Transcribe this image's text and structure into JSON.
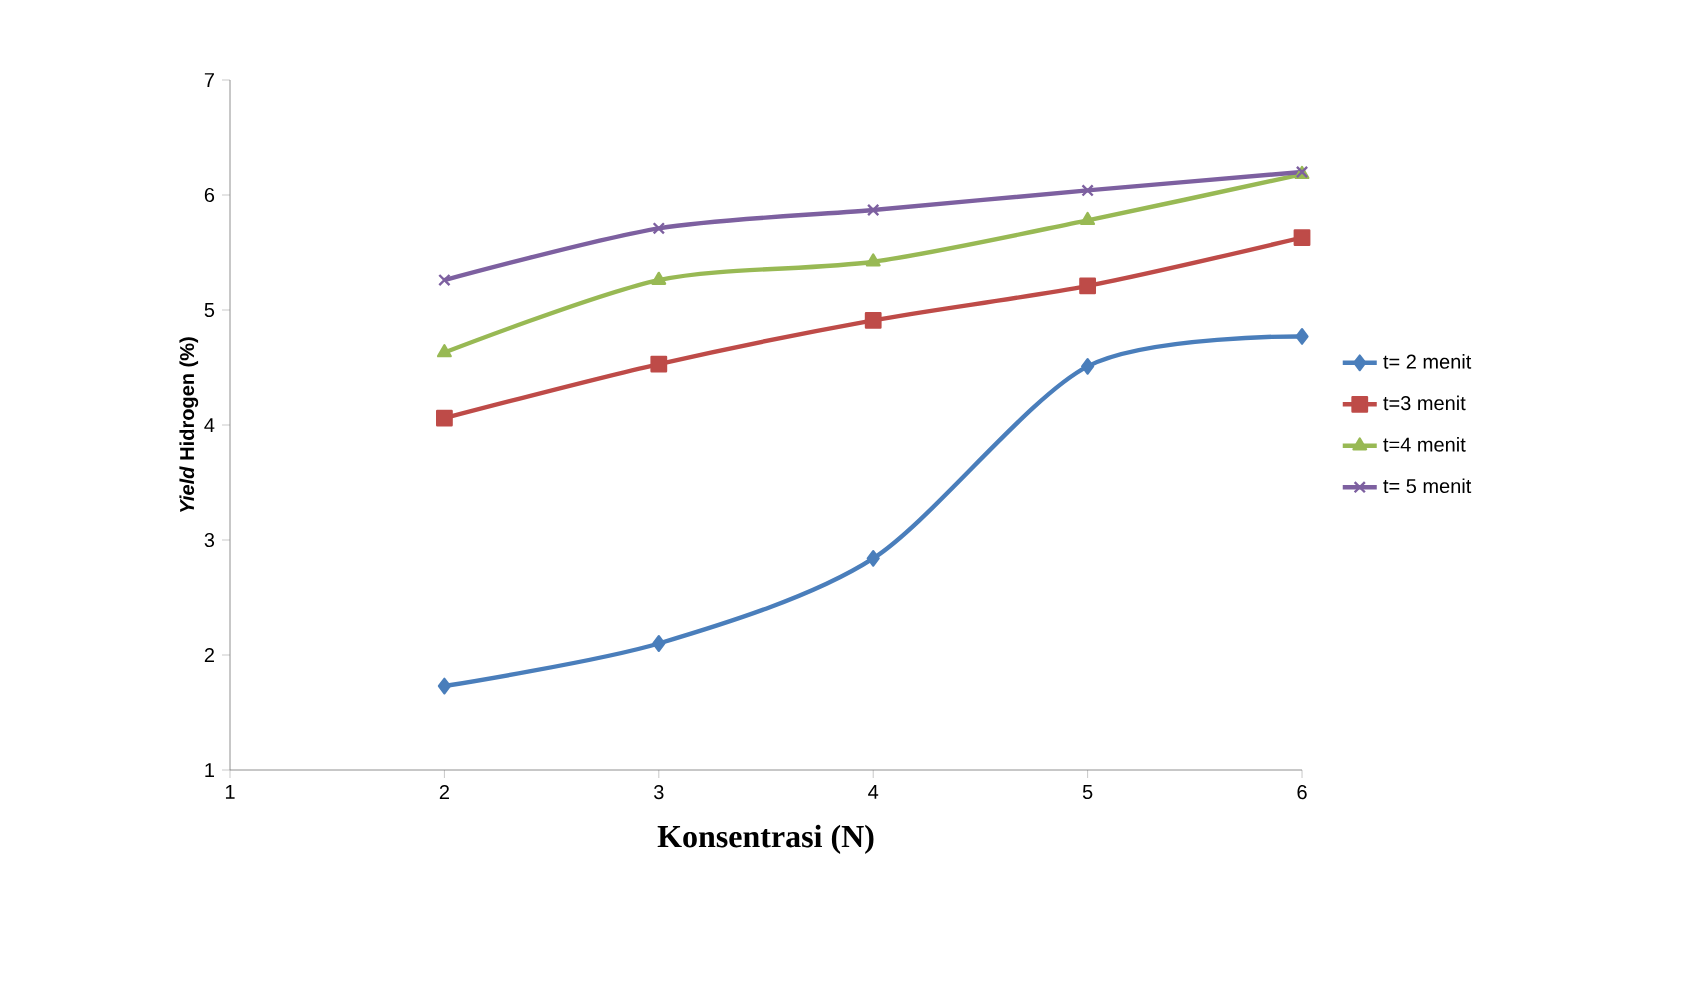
{
  "chart_data": {
    "type": "line",
    "xlabel": "Konsentrasi (N)",
    "ylabel": "*Yield* Hidrogen (%)",
    "x": [
      2,
      3,
      4,
      5,
      6
    ],
    "series": [
      {
        "name": "t= 2 menit",
        "color": "#4a7ebb",
        "marker": "diamond",
        "values": [
          1.73,
          2.1,
          2.84,
          4.51,
          4.77
        ]
      },
      {
        "name": "t=3 menit",
        "color": "#be4b48",
        "marker": "square",
        "values": [
          4.06,
          4.53,
          4.91,
          5.21,
          5.63
        ]
      },
      {
        "name": "t=4 menit",
        "color": "#98b954",
        "marker": "triangle",
        "values": [
          4.63,
          5.26,
          5.42,
          5.78,
          6.18
        ]
      },
      {
        "name": "t= 5 menit",
        "color": "#7d60a0",
        "marker": "cross",
        "values": [
          5.26,
          5.71,
          5.87,
          6.04,
          6.2
        ]
      }
    ],
    "xlim": [
      1,
      6
    ],
    "ylim": [
      1,
      7
    ],
    "xticks": [
      1,
      2,
      3,
      4,
      5,
      6
    ],
    "yticks": [
      1,
      2,
      3,
      4,
      5,
      6,
      7
    ],
    "grid": false,
    "legend": "right",
    "line_style": "solid"
  }
}
